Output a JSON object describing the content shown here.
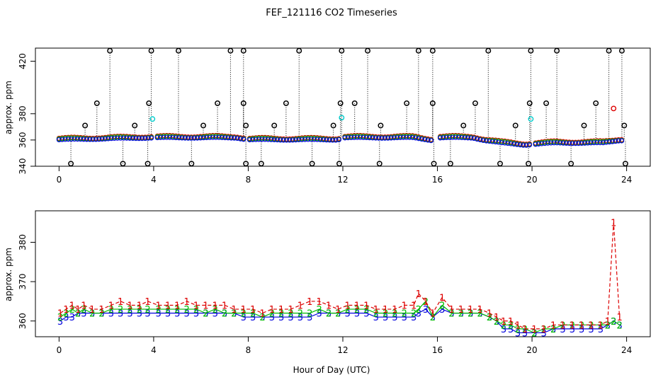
{
  "title": "FEF_121116  CO2 Timeseries",
  "xlabel": "Hour of Day (UTC)",
  "colors": {
    "flag_marker": "#000000",
    "series_1": "#dd0000",
    "series_2": "#00bb00",
    "series_3": "#0000dd",
    "series_4": "#00cccc",
    "drop_line": "#000000"
  },
  "chart_data": [
    {
      "type": "scatter",
      "panel": "top",
      "ylabel": "approx. ppm",
      "xlim": [
        -1,
        25
      ],
      "ylim": [
        340,
        430
      ],
      "xticks": [
        0,
        4,
        8,
        12,
        16,
        20,
        24
      ],
      "yticks": [
        340,
        360,
        380,
        420
      ],
      "xtick_labels": [
        "0",
        "4",
        "8",
        "12",
        "16",
        "20",
        "24"
      ],
      "ytick_labels": [
        "340",
        "360",
        "380",
        "420"
      ],
      "flagged_high": [
        2.15,
        3.9,
        5.05,
        7.25,
        7.8,
        10.15,
        11.95,
        13.05,
        15.2,
        15.8,
        18.15,
        19.95,
        21.05,
        23.25,
        23.8
      ],
      "flagged_mid": [
        1.6,
        3.8,
        6.7,
        7.8,
        9.6,
        11.9,
        12.5,
        14.7,
        15.8,
        17.6,
        19.9,
        20.6,
        22.7
      ],
      "flagged_low_mid": [
        1.1,
        3.2,
        6.1,
        7.9,
        9.1,
        11.6,
        13.6,
        17.1,
        19.3,
        22.2,
        23.9
      ],
      "flagged_low": [
        0.5,
        2.7,
        3.75,
        5.6,
        7.9,
        8.55,
        10.7,
        11.85,
        13.55,
        15.85,
        16.55,
        18.65,
        19.85,
        21.65,
        23.95
      ],
      "flag_values": {
        "high": 428,
        "mid": 388,
        "low_mid": 371,
        "low": 342
      },
      "series_baseline": [
        {
          "x": 0,
          "y": 360.5
        },
        {
          "x": 4,
          "y": 362
        },
        {
          "x": 7.5,
          "y": 362
        },
        {
          "x": 8,
          "y": 360.5
        },
        {
          "x": 11.8,
          "y": 360.5
        },
        {
          "x": 12,
          "y": 362
        },
        {
          "x": 15,
          "y": 362
        },
        {
          "x": 15.8,
          "y": 360
        },
        {
          "x": 16,
          "y": 362
        },
        {
          "x": 17.5,
          "y": 362
        },
        {
          "x": 18,
          "y": 360
        },
        {
          "x": 18.7,
          "y": 358
        },
        {
          "x": 19.7,
          "y": 356.5
        },
        {
          "x": 20,
          "y": 357
        },
        {
          "x": 21,
          "y": 358
        },
        {
          "x": 23,
          "y": 358
        },
        {
          "x": 23.7,
          "y": 360
        }
      ],
      "cyan_points": [
        {
          "x": 3.95,
          "y": 376
        },
        {
          "x": 11.95,
          "y": 377
        },
        {
          "x": 19.95,
          "y": 376
        }
      ],
      "red_outlier": {
        "x": 23.45,
        "y": 384
      }
    },
    {
      "type": "line",
      "panel": "bottom",
      "ylabel": "approx. ppm",
      "xlim": [
        -1,
        25
      ],
      "ylim": [
        356,
        388
      ],
      "xticks": [
        0,
        4,
        8,
        12,
        16,
        20,
        24
      ],
      "yticks": [
        360,
        370,
        380
      ],
      "xtick_labels": [
        "0",
        "4",
        "8",
        "12",
        "16",
        "20",
        "24"
      ],
      "ytick_labels": [
        "360",
        "370",
        "380"
      ],
      "series": [
        {
          "name": "1",
          "label": "1",
          "x": [
            0.05,
            0.3,
            0.55,
            0.8,
            1.05,
            1.4,
            1.8,
            2.2,
            2.6,
            3.0,
            3.4,
            3.75,
            4.2,
            4.6,
            5.0,
            5.4,
            5.8,
            6.2,
            6.6,
            7.0,
            7.4,
            7.8,
            8.2,
            8.6,
            9.0,
            9.4,
            9.8,
            10.2,
            10.6,
            11.0,
            11.4,
            11.8,
            12.2,
            12.6,
            13.0,
            13.4,
            13.8,
            14.2,
            14.6,
            15.0,
            15.2,
            15.5,
            15.8,
            16.2,
            16.6,
            17.0,
            17.4,
            17.8,
            18.2,
            18.5,
            18.8,
            19.1,
            19.4,
            19.7,
            20.1,
            20.5,
            20.9,
            21.3,
            21.7,
            22.1,
            22.5,
            22.9,
            23.2,
            23.45,
            23.7
          ],
          "y": [
            362,
            363,
            364,
            363,
            364,
            363,
            363,
            364,
            365,
            364,
            364,
            365,
            364,
            364,
            364,
            365,
            364,
            364,
            364,
            364,
            363,
            363,
            363,
            362,
            363,
            363,
            363,
            364,
            365,
            365,
            364,
            363,
            364,
            364,
            364,
            363,
            363,
            363,
            364,
            364,
            367,
            365,
            362,
            366,
            363,
            363,
            363,
            363,
            362,
            361,
            360,
            360,
            359,
            358,
            358,
            358,
            359,
            359,
            359,
            359,
            359,
            359,
            360,
            385,
            361
          ]
        },
        {
          "name": "2",
          "label": "2",
          "x": [
            0.05,
            0.3,
            0.55,
            0.8,
            1.05,
            1.4,
            1.8,
            2.2,
            2.6,
            3.0,
            3.4,
            3.75,
            4.2,
            4.6,
            5.0,
            5.4,
            5.8,
            6.2,
            6.6,
            7.0,
            7.4,
            7.8,
            8.2,
            8.6,
            9.0,
            9.4,
            9.8,
            10.2,
            10.6,
            11.0,
            11.4,
            11.8,
            12.2,
            12.6,
            13.0,
            13.4,
            13.8,
            14.2,
            14.6,
            15.0,
            15.2,
            15.5,
            15.8,
            16.2,
            16.6,
            17.0,
            17.4,
            17.8,
            18.2,
            18.5,
            18.8,
            19.1,
            19.4,
            19.7,
            20.1,
            20.5,
            20.9,
            21.3,
            21.7,
            22.1,
            22.5,
            22.9,
            23.2,
            23.45,
            23.7
          ],
          "y": [
            361,
            362,
            363,
            362,
            363,
            362,
            362,
            363,
            363,
            363,
            363,
            363,
            363,
            363,
            363,
            363,
            363,
            362,
            363,
            362,
            362,
            362,
            362,
            361,
            362,
            362,
            362,
            362,
            362,
            363,
            362,
            362,
            363,
            363,
            363,
            362,
            362,
            362,
            362,
            362,
            363,
            365,
            361,
            364,
            362,
            362,
            362,
            362,
            361,
            360,
            359,
            359,
            358,
            358,
            357,
            358,
            358,
            359,
            359,
            359,
            359,
            359,
            359,
            360,
            359
          ]
        },
        {
          "name": "3",
          "label": "3",
          "x": [
            0.05,
            0.3,
            0.55,
            0.8,
            1.05,
            1.4,
            1.8,
            2.2,
            2.6,
            3.0,
            3.4,
            3.75,
            4.2,
            4.6,
            5.0,
            5.4,
            5.8,
            6.2,
            6.6,
            7.0,
            7.4,
            7.8,
            8.2,
            8.6,
            9.0,
            9.4,
            9.8,
            10.2,
            10.6,
            11.0,
            11.4,
            11.8,
            12.2,
            12.6,
            13.0,
            13.4,
            13.8,
            14.2,
            14.6,
            15.0,
            15.2,
            15.5,
            15.8,
            16.2,
            16.6,
            17.0,
            17.4,
            17.8,
            18.2,
            18.5,
            18.8,
            19.1,
            19.4,
            19.7,
            20.1,
            20.5,
            20.9,
            21.3,
            21.7,
            22.1,
            22.5,
            22.9,
            23.2,
            23.45,
            23.7
          ],
          "y": [
            360,
            361,
            361,
            362,
            362,
            362,
            362,
            362,
            362,
            362,
            362,
            362,
            362,
            362,
            362,
            362,
            362,
            362,
            362,
            362,
            362,
            361,
            361,
            361,
            361,
            361,
            361,
            361,
            361,
            362,
            362,
            362,
            362,
            362,
            362,
            361,
            361,
            361,
            361,
            361,
            362,
            363,
            361,
            363,
            362,
            362,
            362,
            362,
            361,
            360,
            358,
            358,
            357,
            357,
            357,
            357,
            358,
            358,
            358,
            358,
            358,
            358,
            359,
            360,
            359
          ]
        }
      ]
    }
  ]
}
